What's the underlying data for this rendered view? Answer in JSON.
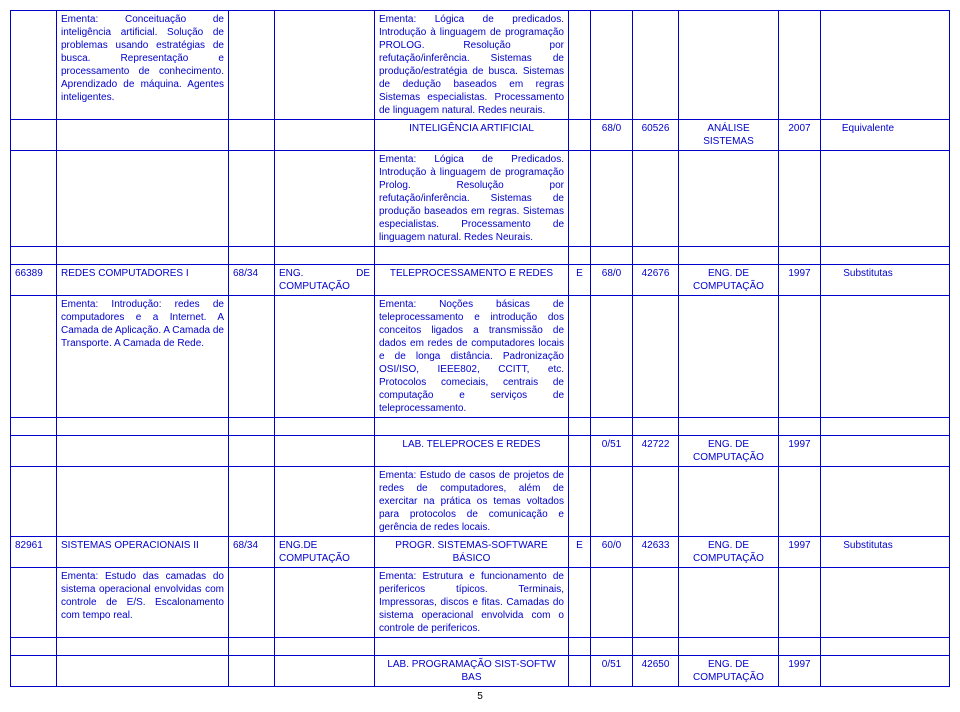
{
  "rows": [
    {
      "c1": "",
      "c2": "Ementa: Conceituação de inteligência artificial. Solução de problemas usando estratégias de busca. Representação e processamento de conhecimento. Aprendizado de máquina. Agentes inteligentes.",
      "c3": "",
      "c4": "",
      "c5": "Ementa: Lógica de predicados. Introdução à linguagem de programação PROLOG. Resolução por refutação/inferência. Sistemas de produção/estratégia de busca. Sistemas de dedução baseados em regras Sistemas especialistas. Processamento de linguagem natural. Redes neurais.",
      "c6": "",
      "c7": "",
      "c8": "",
      "c9": "",
      "c10": "",
      "c11": ""
    },
    {
      "c1": "",
      "c2": "",
      "c3": "",
      "c4": "",
      "c5title": "INTELIGÊNCIA ARTIFICIAL",
      "c6": "",
      "c7": "68/0",
      "c8": "60526",
      "c9": "ANÁLISE SISTEMAS",
      "c10": "2007",
      "c11": "Equivalente"
    },
    {
      "c1": "",
      "c2": "",
      "c3": "",
      "c4": "",
      "c5": "Ementa: Lógica de Predicados. Introdução à linguagem de programação Prolog. Resolução por refutação/inferência. Sistemas de produção baseados em regras. Sistemas especialistas. Processamento de linguagem natural. Redes Neurais.",
      "c6": "",
      "c7": "",
      "c8": "",
      "c9": "",
      "c10": "",
      "c11": ""
    },
    {
      "spacer": true
    },
    {
      "c1": "66389",
      "c2": "REDES COMPUTADORES I",
      "c3": "68/34",
      "c4": "ENG. DE COMPUTAÇÃO",
      "c5title": "TELEPROCESSAMENTO E REDES",
      "c6": "E",
      "c7": "68/0",
      "c8": "42676",
      "c9": "ENG. DE COMPUTAÇÃO",
      "c10": "1997",
      "c11": "Substitutas"
    },
    {
      "c1": "",
      "c2": "Ementa: Introdução: redes de computadores e a Internet. A Camada de Aplicação. A Camada de Transporte. A Camada de Rede.",
      "c3": "",
      "c4": "",
      "c5": "Ementa: Noções básicas de teleprocessamento e introdução dos conceitos ligados a transmissão de dados em redes de computadores locais e de longa distância. Padronização OSI/ISO, IEEE802, CCITT, etc. Protocolos comeciais, centrais de computação e serviços de teleprocessamento.",
      "c6": "",
      "c7": "",
      "c8": "",
      "c9": "",
      "c10": "",
      "c11": ""
    },
    {
      "spacer": true
    },
    {
      "c1": "",
      "c2": "",
      "c3": "",
      "c4": "",
      "c5title": "LAB. TELEPROCES E REDES",
      "c6": "",
      "c7": "0/51",
      "c8": "42722",
      "c9": "ENG. DE COMPUTAÇÃO",
      "c10": "1997",
      "c11": ""
    },
    {
      "c1": "",
      "c2": "",
      "c3": "",
      "c4": "",
      "c5": "Ementa: Estudo de casos de projetos de redes de computadores, além de exercitar na prática os temas voltados para protocolos de comunicação e gerência de redes locais.",
      "c6": "",
      "c7": "",
      "c8": "",
      "c9": "",
      "c10": "",
      "c11": ""
    },
    {
      "c1": "82961",
      "c2": "SISTEMAS OPERACIONAIS II",
      "c3": "68/34",
      "c4": "ENG.DE COMPUTAÇÃO",
      "c5title": "PROGR. SISTEMAS-SOFTWARE BÁSICO",
      "c6": "E",
      "c7": "60/0",
      "c8": "42633",
      "c9": "ENG. DE COMPUTAÇÃO",
      "c10": "1997",
      "c11": "Substitutas"
    },
    {
      "c1": "",
      "c2": "Ementa: Estudo das camadas do sistema operacional envolvidas com controle de E/S. Escalonamento com tempo real.",
      "c3": "",
      "c4": "",
      "c5": "Ementa: Estrutura e funcionamento de perifericos típicos. Terminais, Impressoras, discos e fitas. Camadas do sistema operacional envolvida com o controle de perifericos.",
      "c6": "",
      "c7": "",
      "c8": "",
      "c9": "",
      "c10": "",
      "c11": ""
    },
    {
      "spacer": true
    },
    {
      "c1": "",
      "c2": "",
      "c3": "",
      "c4": "",
      "c5title": "LAB. PROGRAMAÇÃO SIST-SOFTW BAS",
      "c6": "",
      "c7": "0/51",
      "c8": "42650",
      "c9": "ENG. DE COMPUTAÇÃO",
      "c10": "1997",
      "c11": ""
    }
  ],
  "pagenum": "5"
}
